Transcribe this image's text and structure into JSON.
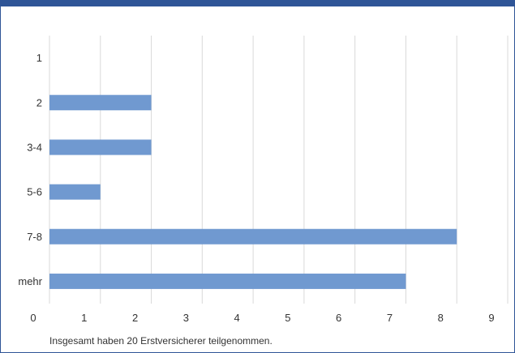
{
  "chart_data": {
    "type": "bar",
    "orientation": "horizontal",
    "categories": [
      "1",
      "2",
      "3-4",
      "5-6",
      "7-8",
      "mehr"
    ],
    "values": [
      0,
      2,
      2,
      1,
      8,
      7
    ],
    "xlim": [
      0,
      9
    ],
    "xticks": [
      0,
      1,
      2,
      3,
      4,
      5,
      6,
      7,
      8,
      9
    ],
    "grid": "vertical",
    "bar_color": "#7099d0",
    "grid_color": "#d9d9d9"
  },
  "footnote": "Insgesamt haben 20 Erstversicherer teilgenommen."
}
